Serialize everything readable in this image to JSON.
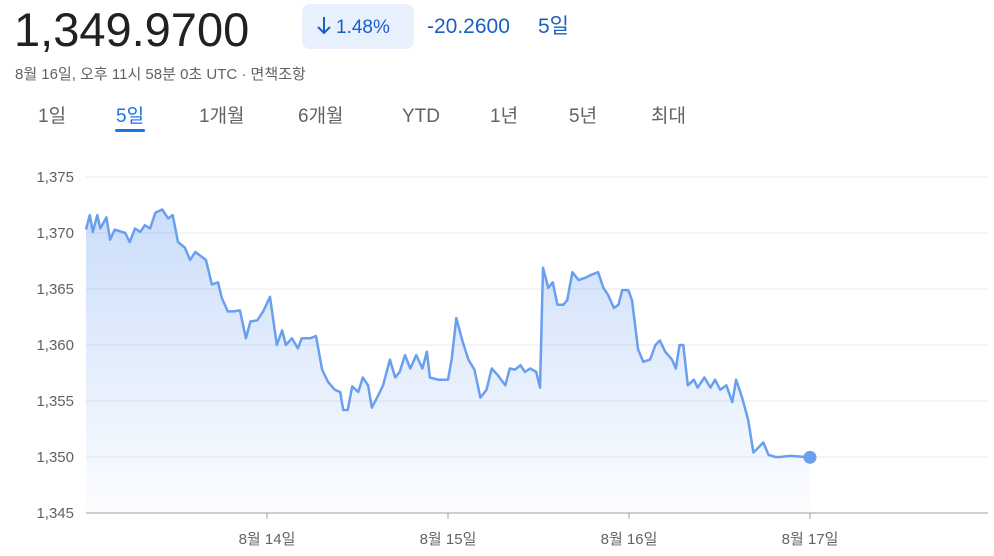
{
  "header": {
    "price": "1,349.9700",
    "change_percent": "1.48%",
    "change": "-20.2600",
    "period": "5일",
    "timestamp": "8월 16일, 오후 11시 58분 0초 UTC · 면책조항"
  },
  "tabs": [
    "1일",
    "5일",
    "1개월",
    "6개월",
    "YTD",
    "1년",
    "5년",
    "최대"
  ],
  "selected_tab": 1,
  "chart_data": {
    "type": "area",
    "color": "#6a9ff0",
    "x": [
      0,
      0.5,
      0.9,
      1.5,
      1.9,
      2.7,
      3.2,
      3.8,
      5.2,
      5.8,
      6.5,
      7.2,
      7.8,
      8.5,
      9.2,
      10.1,
      10.9,
      11.5,
      12.2,
      13.1,
      13.8,
      14.5,
      15.1,
      15.9,
      16.7,
      17.5,
      18.0,
      18.8,
      19.6,
      20.4,
      21.2,
      21.8,
      22.7,
      23.5,
      24.4,
      25.3,
      26.0,
      26.5,
      27.3,
      28.1,
      28.6,
      29.7,
      30.5,
      31.3,
      32.1,
      33.0,
      33.7,
      34.1,
      34.7,
      35.3,
      36.1,
      36.7,
      37.4,
      37.9,
      38.6,
      39.4,
      40.3,
      41.0,
      41.6,
      42.3,
      43.0,
      43.8,
      44.6,
      45.2,
      45.6,
      46.7,
      48.0,
      48.5,
      49.1,
      49.9,
      50.7,
      51.5,
      52.3,
      53.1,
      53.8,
      54.6,
      55.6,
      56.2,
      56.9,
      57.6,
      58.2,
      58.9,
      59.7,
      60.2,
      60.6,
      61.3,
      61.9,
      62.5,
      63.3,
      63.8,
      64.5,
      65.3,
      66.2,
      67.1,
      67.9,
      68.6,
      69.2,
      70.0,
      70.6,
      71.1,
      71.9,
      72.4,
      73.2,
      73.9,
      74.8,
      75.5,
      76.1,
      76.8,
      77.7,
      78.2,
      78.7,
      79.2,
      79.8,
      80.6,
      81.1,
      82.0,
      82.8,
      83.4,
      84.1,
      84.9,
      85.7,
      86.2,
      87.0,
      87.8,
      88.5,
      89.1,
      89.8,
      90.5,
      91.4,
      92.0,
      93.4,
      96.0
    ],
    "values": [
      1370.3,
      1371.6,
      1370.1,
      1371.6,
      1370.4,
      1371.4,
      1369.4,
      1370.3,
      1370.0,
      1369.2,
      1370.4,
      1370.1,
      1370.7,
      1370.4,
      1371.8,
      1372.1,
      1371.3,
      1371.6,
      1369.2,
      1368.7,
      1367.6,
      1368.3,
      1368.0,
      1367.6,
      1365.4,
      1365.6,
      1364.2,
      1363.0,
      1363.0,
      1363.1,
      1360.6,
      1362.1,
      1362.2,
      1363.0,
      1364.3,
      1360.0,
      1361.3,
      1360.0,
      1360.6,
      1359.7,
      1360.6,
      1360.6,
      1360.8,
      1357.8,
      1356.7,
      1356.0,
      1355.8,
      1354.2,
      1354.2,
      1356.3,
      1355.8,
      1357.1,
      1356.4,
      1354.4,
      1355.3,
      1356.4,
      1358.7,
      1357.1,
      1357.6,
      1359.1,
      1357.9,
      1359.1,
      1357.9,
      1359.4,
      1357.1,
      1356.9,
      1356.9,
      1358.8,
      1362.4,
      1360.4,
      1358.7,
      1357.8,
      1355.3,
      1356.0,
      1357.9,
      1357.3,
      1356.4,
      1357.9,
      1357.8,
      1358.2,
      1357.6,
      1357.9,
      1357.6,
      1356.2,
      1366.9,
      1365.1,
      1365.6,
      1363.6,
      1363.6,
      1364.0,
      1366.5,
      1365.8,
      1366.0,
      1366.3,
      1366.5,
      1365.1,
      1364.5,
      1363.3,
      1363.6,
      1364.9,
      1364.9,
      1364.0,
      1359.6,
      1358.5,
      1358.7,
      1360.0,
      1360.4,
      1359.4,
      1358.7,
      1357.9,
      1360.0,
      1360.0,
      1356.4,
      1356.9,
      1356.2,
      1357.1,
      1356.2,
      1356.9,
      1356.0,
      1356.4,
      1354.9,
      1356.9,
      1355.3,
      1353.3,
      1350.4,
      1350.8,
      1351.3,
      1350.2,
      1350.0,
      1350.0,
      1350.1,
      1349.97
    ],
    "xlim": [
      0,
      119.6
    ],
    "xticks": [
      {
        "value": 24,
        "label": "8월 14일"
      },
      {
        "value": 48,
        "label": "8월 15일"
      },
      {
        "value": 72,
        "label": "8월 16일"
      },
      {
        "value": 96,
        "label": "8월 17일"
      }
    ],
    "ylim": [
      1345,
      1375
    ],
    "yticks": [
      {
        "value": 1345,
        "label": "1,345"
      },
      {
        "value": 1350,
        "label": "1,350"
      },
      {
        "value": 1355,
        "label": "1,355"
      },
      {
        "value": 1360,
        "label": "1,360"
      },
      {
        "value": 1365,
        "label": "1,365"
      },
      {
        "value": 1370,
        "label": "1,370"
      },
      {
        "value": 1375,
        "label": "1,375"
      }
    ],
    "grid": true
  }
}
